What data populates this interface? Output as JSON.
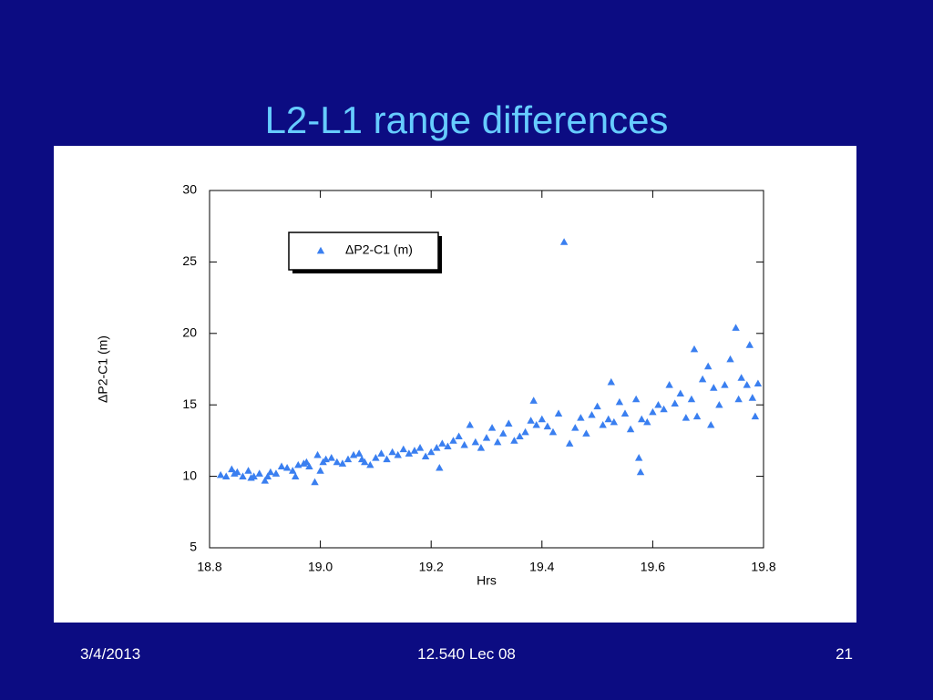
{
  "slide": {
    "title": "L2-L1 range differences",
    "date": "3/4/2013",
    "course": "12.540 Lec 08",
    "page": "21"
  },
  "chart_data": {
    "type": "scatter",
    "xlabel": "Hrs",
    "ylabel": "ΔP2-C1 (m)",
    "xlim": [
      18.8,
      19.8
    ],
    "xticks": [
      18.8,
      {
        "value": 19,
        "label": "19.0"
      },
      19.2,
      19.4,
      19.6,
      19.8
    ],
    "ylim": [
      5,
      30
    ],
    "yticks": [
      5,
      10,
      15,
      20,
      25,
      30
    ],
    "grid": false,
    "legend": "upper left",
    "x": [
      18.82,
      18.83,
      18.84,
      18.845,
      18.85,
      18.86,
      18.87,
      18.875,
      18.88,
      18.89,
      18.9,
      18.905,
      18.91,
      18.92,
      18.93,
      18.94,
      18.95,
      18.955,
      18.96,
      18.97,
      18.975,
      18.98,
      18.99,
      18.995,
      19.0,
      19.005,
      19.01,
      19.02,
      19.03,
      19.04,
      19.05,
      19.06,
      19.07,
      19.075,
      19.08,
      19.09,
      19.1,
      19.11,
      19.12,
      19.13,
      19.14,
      19.15,
      19.16,
      19.17,
      19.18,
      19.19,
      19.2,
      19.21,
      19.215,
      19.22,
      19.23,
      19.24,
      19.25,
      19.26,
      19.27,
      19.28,
      19.29,
      19.3,
      19.31,
      19.32,
      19.33,
      19.34,
      19.35,
      19.36,
      19.37,
      19.38,
      19.385,
      19.39,
      19.4,
      19.41,
      19.42,
      19.43,
      19.44,
      19.45,
      19.46,
      19.47,
      19.48,
      19.49,
      19.5,
      19.51,
      19.52,
      19.525,
      19.53,
      19.54,
      19.55,
      19.56,
      19.57,
      19.575,
      19.578,
      19.58,
      19.59,
      19.6,
      19.61,
      19.62,
      19.63,
      19.64,
      19.65,
      19.66,
      19.67,
      19.675,
      19.68,
      19.69,
      19.7,
      19.705,
      19.71,
      19.72,
      19.73,
      19.74,
      19.75,
      19.755,
      19.76,
      19.77,
      19.775,
      19.78,
      19.785,
      19.79
    ],
    "series": [
      {
        "name": "ΔP2-C1 (m)",
        "color": "#3a7ff0",
        "values": [
          10.1,
          10.0,
          10.5,
          10.2,
          10.3,
          10.0,
          10.4,
          9.9,
          10.0,
          10.2,
          9.7,
          10.0,
          10.3,
          10.2,
          10.7,
          10.6,
          10.4,
          10.0,
          10.8,
          10.9,
          11.0,
          10.7,
          9.6,
          11.5,
          10.4,
          11.0,
          11.2,
          11.3,
          11.0,
          10.9,
          11.2,
          11.5,
          11.6,
          11.2,
          11.0,
          10.8,
          11.3,
          11.6,
          11.2,
          11.7,
          11.5,
          11.9,
          11.6,
          11.8,
          12.0,
          11.4,
          11.7,
          12.0,
          10.6,
          12.3,
          12.1,
          12.5,
          12.8,
          12.2,
          13.6,
          12.4,
          12.0,
          12.7,
          13.4,
          12.4,
          13.0,
          13.7,
          12.5,
          12.8,
          13.1,
          13.9,
          15.3,
          13.6,
          14.0,
          13.5,
          13.1,
          14.4,
          26.4,
          12.3,
          13.4,
          14.1,
          13.0,
          14.3,
          14.9,
          13.6,
          14.0,
          16.6,
          13.8,
          15.2,
          14.4,
          13.3,
          15.4,
          11.3,
          10.3,
          14.0,
          13.8,
          14.5,
          15.0,
          14.7,
          16.4,
          15.1,
          15.8,
          14.1,
          15.4,
          18.9,
          14.2,
          16.8,
          17.7,
          13.6,
          16.2,
          15.0,
          16.4,
          18.2,
          20.4,
          15.4,
          16.9,
          16.4,
          19.2,
          15.5,
          14.2,
          16.5
        ]
      }
    ]
  }
}
